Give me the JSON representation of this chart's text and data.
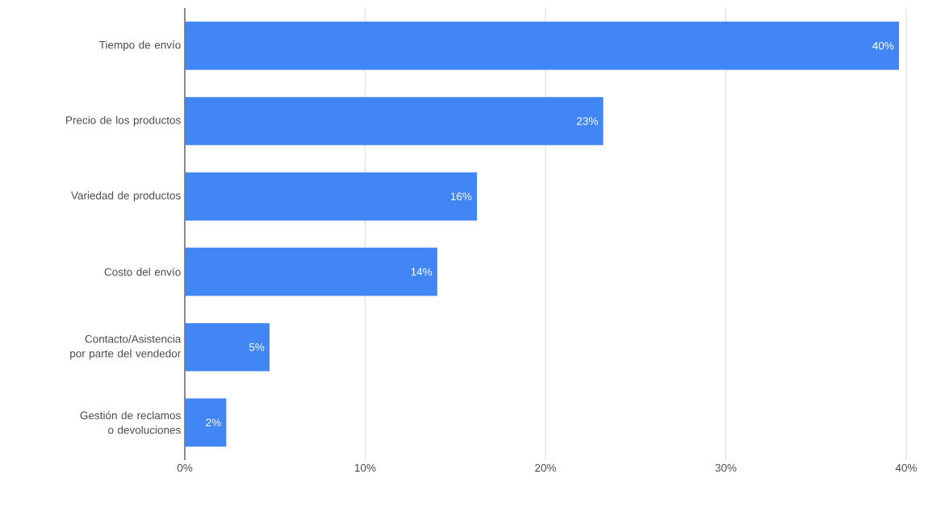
{
  "chart_data": {
    "type": "bar",
    "orientation": "horizontal",
    "categories": [
      "Tiempo de envío",
      "Precio de los productos",
      "Variedad de productos",
      "Costo del envío",
      "Contacto/Asistencia por parte del vendedor",
      "Gestión de reclamos o devoluciones"
    ],
    "values": [
      39.6,
      23.2,
      16.2,
      14.0,
      4.7,
      2.3
    ],
    "value_labels": [
      "40%",
      "23%",
      "16%",
      "14%",
      "5%",
      "2%"
    ],
    "color": "#4285f4",
    "xlim": [
      0,
      40
    ],
    "xticks": [
      {
        "value": 0,
        "label": "0%"
      },
      {
        "value": 10,
        "label": "10%"
      },
      {
        "value": 20,
        "label": "20%"
      },
      {
        "value": 30,
        "label": "30%"
      },
      {
        "value": 40,
        "label": "40%"
      }
    ],
    "grid": "x"
  }
}
